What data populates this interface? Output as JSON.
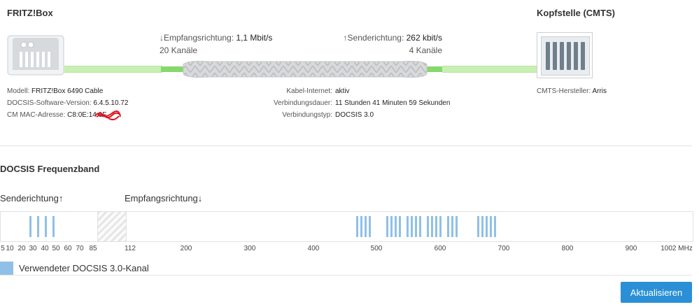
{
  "device": {
    "title": "FRITZ!Box",
    "model_label": "Modell:",
    "model_value": "FRITZ!Box 6490 Cable",
    "software_label": "DOCSIS-Software-Version:",
    "software_value": "6.4.5.10.72",
    "mac_label": "CM MAC-Adresse:",
    "mac_value": "C8:0E:14:9F"
  },
  "headend": {
    "title": "Kopfstelle (CMTS)",
    "vendor_label": "CMTS-Hersteller:",
    "vendor_value": "Arris"
  },
  "downstream": {
    "arrow": "↓",
    "label": "Empfangsrichtung:",
    "rate": "1,1 Mbit/s",
    "channels": "20 Kanäle"
  },
  "upstream": {
    "arrow": "↑",
    "label": "Senderichtung:",
    "rate": "262 kbit/s",
    "channels": "4 Kanäle"
  },
  "connection": {
    "status_label": "Kabel-Internet:",
    "status_value": "aktiv",
    "duration_label": "Verbindungsdauer:",
    "duration_value": "11 Stunden 41 Minuten 59 Sekunden",
    "type_label": "Verbindungstyp:",
    "type_value": "DOCSIS 3.0"
  },
  "band": {
    "title": "DOCSIS Frequenzband",
    "upstream_label": "Senderichtung↑",
    "downstream_label": "Empfangsrichtung↓",
    "upstream_channel_count": 4,
    "downstream_channel_count": 20,
    "ticks": [
      "5",
      "10",
      "20",
      "30",
      "40",
      "50",
      "60",
      "70",
      "85",
      "112",
      "200",
      "300",
      "400",
      "500",
      "600",
      "700",
      "800",
      "900",
      "1002 MHz"
    ],
    "legend": "Verwendeter DOCSIS 3.0-Kanal",
    "channel_color": "#8fc0e8"
  },
  "actions": {
    "refresh_label": "Aktualisieren"
  },
  "colors": {
    "accent": "#2a8fd6",
    "cable": "#86d86c"
  }
}
